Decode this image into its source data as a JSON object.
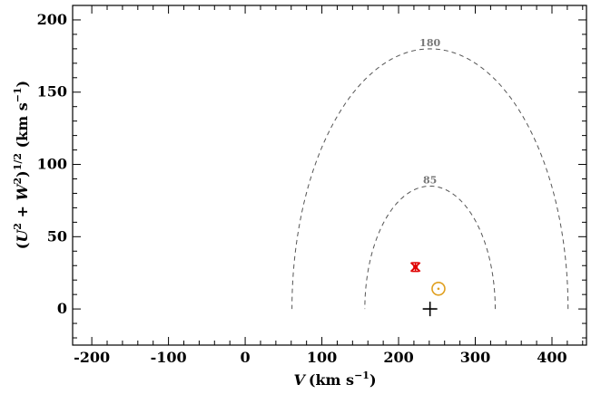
{
  "chart_data": {
    "type": "scatter",
    "title": "",
    "xlabel": {
      "var": "V",
      "unit": "(km s",
      "exp": "−1",
      "close": ")"
    },
    "ylabel": {
      "open": "(",
      "u": "U",
      "plus": " + ",
      "w": "W",
      "sq": "2",
      "close": ")",
      "half": "1/2",
      "unit": " (km s",
      "exp": "−1",
      "end": ")"
    },
    "xlim": [
      -225,
      445
    ],
    "ylim": [
      -25,
      210
    ],
    "xticks": [
      -200,
      -100,
      0,
      100,
      200,
      300,
      400
    ],
    "yticks": [
      0,
      50,
      100,
      150,
      200
    ],
    "xtick_labels": [
      "-200",
      "-100",
      "0",
      "100",
      "200",
      "300",
      "400"
    ],
    "ytick_labels": [
      "0",
      "50",
      "100",
      "150",
      "200"
    ],
    "grid": false,
    "contours": [
      {
        "label": "85",
        "center_v": 241,
        "radius": 85,
        "color": "#555555",
        "style": "dashed"
      },
      {
        "label": "180",
        "center_v": 241,
        "radius": 180,
        "color": "#555555",
        "style": "dashed"
      }
    ],
    "markers": [
      {
        "name": "star",
        "x": 222,
        "y": 29,
        "yerr": 3,
        "xerr": 3,
        "symbol": "x-errorbar",
        "color": "#e00000"
      },
      {
        "name": "sun",
        "x": 252,
        "y": 14,
        "symbol": "sun",
        "color": "#e0a020"
      },
      {
        "name": "lsr",
        "x": 241,
        "y": 0,
        "symbol": "plus",
        "color": "#000000"
      }
    ]
  }
}
